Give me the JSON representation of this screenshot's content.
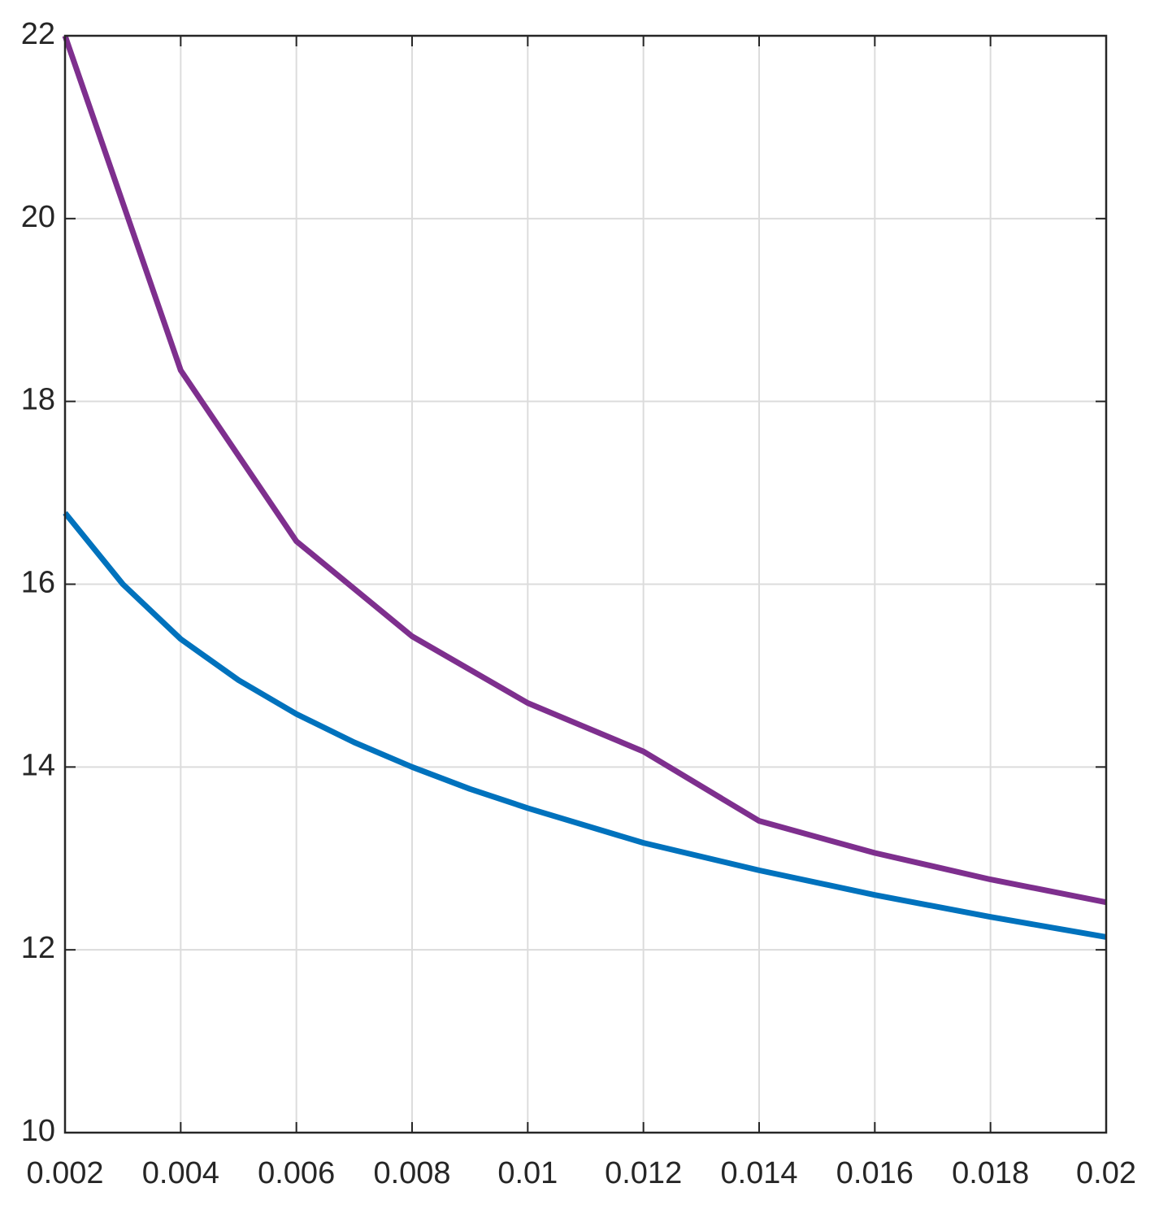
{
  "chart_data": {
    "type": "line",
    "series": [
      {
        "color": "#7e2f8e",
        "x": [
          0.002,
          0.004,
          0.006,
          0.008,
          0.01,
          0.012,
          0.014,
          0.016,
          0.018,
          0.02
        ],
        "values": [
          22.0,
          18.34,
          16.47,
          15.43,
          14.7,
          14.17,
          13.41,
          13.06,
          12.77,
          12.52
        ]
      },
      {
        "color": "#0072bd",
        "x": [
          0.002,
          0.003,
          0.004,
          0.005,
          0.006,
          0.007,
          0.008,
          0.009,
          0.01,
          0.012,
          0.014,
          0.016,
          0.018,
          0.02
        ],
        "values": [
          16.78,
          16.0,
          15.4,
          14.95,
          14.58,
          14.27,
          14.0,
          13.76,
          13.55,
          13.17,
          12.87,
          12.6,
          12.36,
          12.14
        ]
      }
    ],
    "xlim": [
      0.002,
      0.02
    ],
    "xticks": [
      0.002,
      0.004,
      0.006,
      0.008,
      0.01,
      0.012,
      0.014,
      0.016,
      0.018,
      0.02
    ],
    "ylim": [
      10,
      22
    ],
    "yticks": [
      10,
      12,
      14,
      16,
      18,
      20,
      22
    ],
    "grid": true
  }
}
